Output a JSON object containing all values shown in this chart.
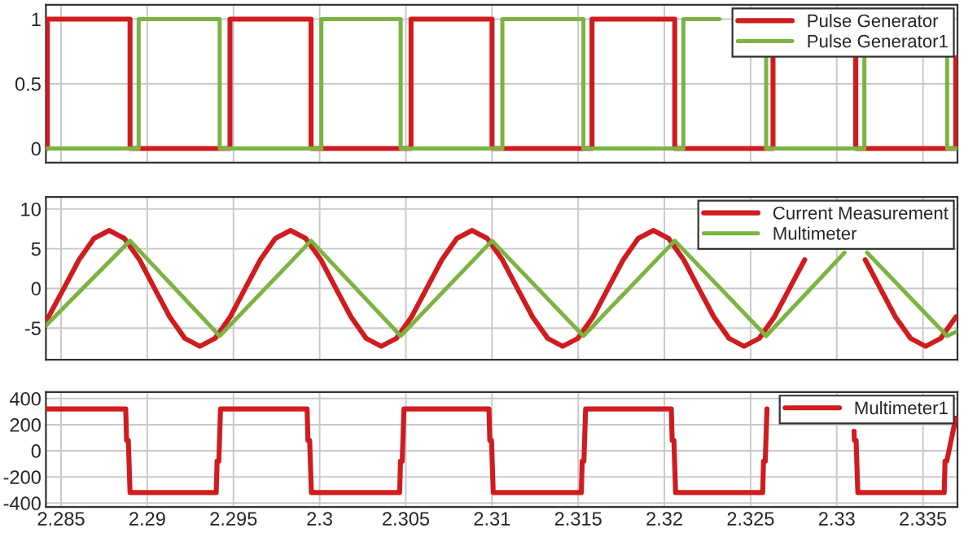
{
  "chart_data": [
    {
      "type": "step",
      "xlim": [
        2.28412,
        2.337
      ],
      "ylim": [
        -0.11,
        1.11
      ],
      "xticks": [
        2.285,
        2.29,
        2.295,
        2.3,
        2.305,
        2.31,
        2.315,
        2.32,
        2.325,
        2.33,
        2.335
      ],
      "yticks": [
        0,
        0.5,
        1
      ],
      "grid": true,
      "legend": "top right",
      "tick_labels": "y",
      "series": [
        {
          "name": "Pulse Generator",
          "color": "#d01c1f",
          "type": "line",
          "x": [
            2.2842,
            2.2842,
            2.289,
            2.289,
            2.2948,
            2.2948,
            2.2995,
            2.2995,
            2.3053,
            2.3053,
            2.31,
            2.31,
            2.3158,
            2.3158,
            2.3206,
            2.3206,
            2.3263,
            2.3263,
            2.3287,
            2.3311,
            2.3311,
            2.3369,
            2.3369
          ],
          "values": [
            0,
            1,
            1,
            0,
            0,
            1,
            1,
            0,
            0,
            1,
            1,
            0,
            0,
            1,
            1,
            0,
            0,
            0.7,
            null,
            0.7,
            0,
            0,
            0.7
          ]
        },
        {
          "name": "Pulse Generator1",
          "color": "#7cb342",
          "type": "line",
          "x": [
            2.28412,
            2.2895,
            2.2895,
            2.2942,
            2.2942,
            2.3001,
            2.3001,
            2.3047,
            2.3047,
            2.3106,
            2.3106,
            2.3153,
            2.3153,
            2.3211,
            2.3211,
            2.3232,
            2.3248,
            2.3259,
            2.3259,
            2.3316,
            2.3316,
            2.334,
            2.3364,
            2.3364,
            2.337
          ],
          "values": [
            0,
            0,
            1,
            1,
            0,
            0,
            1,
            1,
            0,
            0,
            1,
            1,
            0,
            0,
            1,
            1,
            null,
            0.7,
            0,
            0,
            0.7,
            null,
            0.7,
            0,
            0
          ]
        }
      ]
    },
    {
      "type": "line",
      "xlim": [
        2.28412,
        2.337
      ],
      "ylim": [
        -9,
        11.5
      ],
      "xticks": [
        2.285,
        2.29,
        2.295,
        2.3,
        2.305,
        2.31,
        2.315,
        2.32,
        2.325,
        2.33,
        2.335
      ],
      "yticks": [
        -5,
        0,
        5,
        10
      ],
      "grid": true,
      "legend": "top right",
      "tick_labels": "y",
      "series": [
        {
          "name": "Current Measurement",
          "color": "#d01c1f",
          "x": [
            2.28412,
            2.28516,
            2.28604,
            2.28691,
            2.28779,
            2.28867,
            2.28955,
            2.29042,
            2.2913,
            2.29218,
            2.29305,
            2.29393,
            2.29481,
            2.29568,
            2.29656,
            2.29743,
            2.29831,
            2.29919,
            2.30007,
            2.30094,
            2.30182,
            2.3027,
            2.30357,
            2.30445,
            2.30533,
            2.30621,
            2.30709,
            2.30796,
            2.30884,
            2.30972,
            2.3106,
            2.31147,
            2.31235,
            2.31323,
            2.3141,
            2.31498,
            2.31586,
            2.31673,
            2.31761,
            2.31848,
            2.31936,
            2.32024,
            2.32112,
            2.32199,
            2.32287,
            2.32375,
            2.32462,
            2.3255,
            2.32638,
            2.32726,
            2.32814,
            2.32901,
            2.32989,
            2.33077,
            2.33165,
            2.33252,
            2.3334,
            2.33428,
            2.33515,
            2.33603,
            2.33691
          ],
          "values": [
            -4.2,
            0,
            3.6,
            6.3,
            7.3,
            6.3,
            3.6,
            0,
            -3.6,
            -6.3,
            -7.3,
            -6.3,
            -3.6,
            0,
            3.6,
            6.3,
            7.3,
            6.3,
            3.6,
            0,
            -3.6,
            -6.3,
            -7.3,
            -6.3,
            -3.6,
            0,
            3.6,
            6.3,
            7.3,
            6.3,
            3.6,
            0,
            -3.6,
            -6.3,
            -7.3,
            -6.3,
            -3.6,
            0,
            3.6,
            6.3,
            7.3,
            6.3,
            3.6,
            0,
            -3.6,
            -6.3,
            -7.3,
            -6.3,
            -3.6,
            0,
            3.6,
            null,
            null,
            null,
            3.6,
            0,
            -3.6,
            -6.3,
            -7.3,
            -6.3,
            -3.6
          ]
        },
        {
          "name": "Multimeter",
          "color": "#7cb342",
          "x": [
            2.28412,
            2.289,
            2.2942,
            2.2995,
            2.3047,
            2.31,
            2.3153,
            2.3206,
            2.3259,
            2.33045,
            2.3311,
            2.33176,
            2.3364,
            2.337
          ],
          "values": [
            -4.7,
            6,
            -6,
            6,
            -6,
            6,
            -6,
            6,
            -6,
            4.5,
            null,
            4.5,
            -6,
            -5.4
          ]
        }
      ]
    },
    {
      "type": "line",
      "xlim": [
        2.28412,
        2.337
      ],
      "ylim": [
        -430,
        450
      ],
      "xticks": [
        2.285,
        2.29,
        2.295,
        2.3,
        2.305,
        2.31,
        2.315,
        2.32,
        2.325,
        2.33,
        2.335
      ],
      "yticks": [
        -400,
        -200,
        0,
        200,
        400
      ],
      "grid": true,
      "legend": "top right",
      "series": [
        {
          "name": "Multimeter1",
          "color": "#d01c1f",
          "x": [
            2.28412,
            2.28875,
            2.2888,
            2.2889,
            2.289,
            2.294,
            2.29405,
            2.29415,
            2.29425,
            2.29927,
            2.29932,
            2.29942,
            2.29952,
            2.30464,
            2.30469,
            2.30479,
            2.30489,
            2.30982,
            2.30987,
            2.30997,
            2.31007,
            2.31518,
            2.31523,
            2.31533,
            2.31543,
            2.3204,
            2.32045,
            2.32055,
            2.32065,
            2.3257,
            2.32575,
            2.32585,
            2.32595,
            2.33097,
            2.331,
            2.33102,
            2.33112,
            2.33122,
            2.33623,
            2.33628,
            2.33638,
            2.3369
          ],
          "values": [
            320,
            320,
            80,
            80,
            -320,
            -320,
            -80,
            -80,
            320,
            320,
            80,
            80,
            -320,
            -320,
            -80,
            -80,
            320,
            320,
            80,
            80,
            -320,
            -320,
            -80,
            -80,
            320,
            320,
            80,
            80,
            -320,
            -320,
            -80,
            -80,
            320,
            null,
            150,
            80,
            80,
            -320,
            -320,
            -80,
            -80,
            250
          ]
        }
      ]
    }
  ]
}
